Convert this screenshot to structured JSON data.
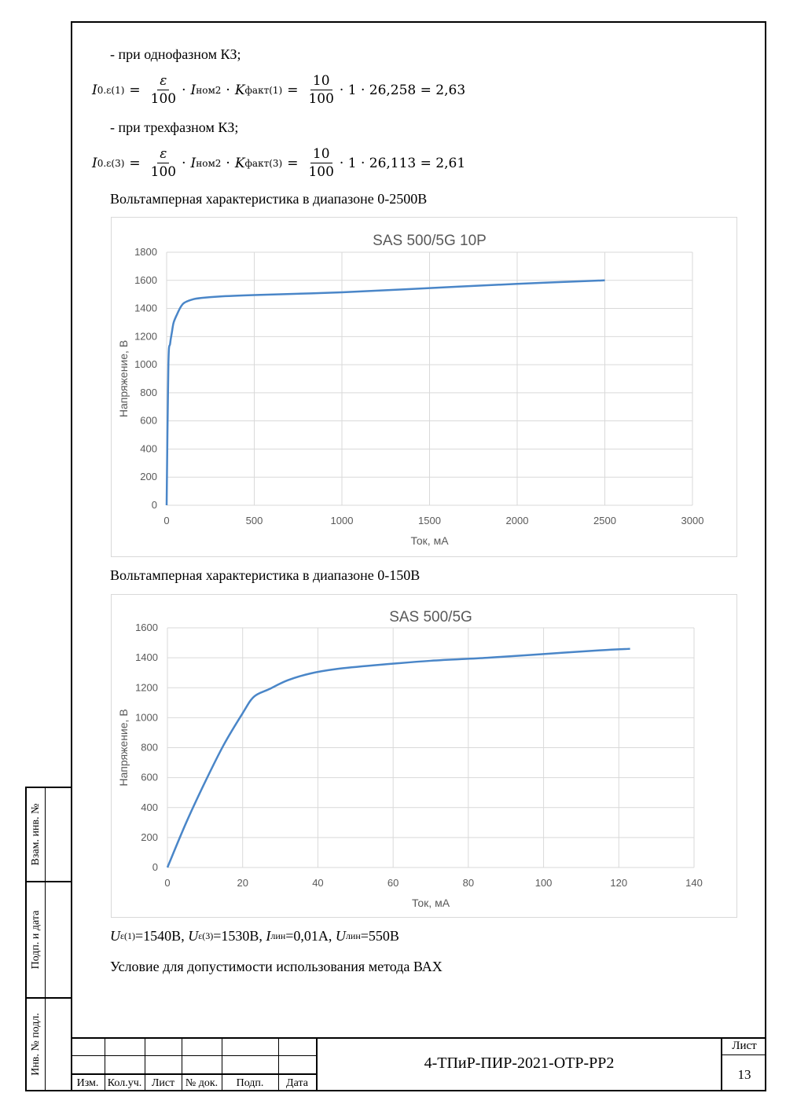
{
  "page": {
    "line1": "- при однофазном КЗ;",
    "line2": "- при трехфазном КЗ;",
    "caption1": "Вольтамперная характеристика в диапазоне 0-2500В",
    "caption2": "Вольтамперная характеристика в диапазоне 0-150В",
    "footer_condition": "Условие для допустимости использования метода ВАХ"
  },
  "formula1": {
    "lhs_sub": "0.ε(1)",
    "eps": "ε",
    "den": "100",
    "inom_sub": "ном2",
    "k_sub": "факт(1)",
    "num2": "10",
    "den2": "100",
    "tail": "· 1 · 26,258 = 2,63"
  },
  "formula2": {
    "lhs_sub": "0.ε(3)",
    "eps": "ε",
    "den": "100",
    "inom_sub": "ном2",
    "k_sub": "факт(3)",
    "num2": "10",
    "den2": "100",
    "tail": "· 1 · 26,113 = 2,61"
  },
  "params": {
    "u1_sub": "ε(1)",
    "u1_val": "=1540В,",
    "u3_sub": "ε(3)",
    "u3_val": "=1530В,",
    "ilin_sub": "лин",
    "ilin_val": "=0,01А,",
    "ulin_sub": "лин",
    "ulin_val": "=550В"
  },
  "chart_data": [
    {
      "type": "line",
      "title": "SAS 500/5G 10P",
      "xlabel": "Ток, мА",
      "ylabel": "Напряжение, В",
      "xlim": [
        0,
        3000
      ],
      "ylim": [
        0,
        1800
      ],
      "xticks": [
        0,
        500,
        1000,
        1500,
        2000,
        2500,
        3000
      ],
      "yticks": [
        0,
        200,
        400,
        600,
        800,
        1000,
        1200,
        1400,
        1600,
        1800
      ],
      "grid": true,
      "color": "#4a86c8",
      "x": [
        0,
        10,
        20,
        30,
        40,
        60,
        80,
        100,
        150,
        200,
        300,
        500,
        1000,
        1500,
        2000,
        2500
      ],
      "y": [
        0,
        1000,
        1150,
        1230,
        1300,
        1360,
        1410,
        1440,
        1465,
        1475,
        1485,
        1495,
        1515,
        1545,
        1575,
        1600
      ]
    },
    {
      "type": "line",
      "title": "SAS 500/5G",
      "xlabel": "Ток, мА",
      "ylabel": "Напряжение, В",
      "xlim": [
        0,
        140
      ],
      "ylim": [
        0,
        1600
      ],
      "xticks": [
        0,
        20,
        40,
        60,
        80,
        100,
        120,
        140
      ],
      "yticks": [
        0,
        200,
        400,
        600,
        800,
        1000,
        1200,
        1400,
        1600
      ],
      "grid": true,
      "color": "#4a86c8",
      "x": [
        0,
        5,
        10,
        15,
        20,
        23,
        27,
        32,
        38,
        45,
        55,
        70,
        85,
        100,
        115,
        123
      ],
      "y": [
        0,
        300,
        570,
        820,
        1030,
        1140,
        1190,
        1250,
        1295,
        1325,
        1350,
        1380,
        1400,
        1425,
        1450,
        1460
      ]
    }
  ],
  "side_stamp": {
    "row1": "Взам. инв. №",
    "row2": "Подп. и дата",
    "row3": "Инв. № подл."
  },
  "title_block": {
    "col_labels": [
      "Изм.",
      "Кол.уч.",
      "Лист",
      "№ док.",
      "Подп.",
      "Дата"
    ],
    "doc_code": "4-ТПиР-ПИР-2021-ОТР-РР2",
    "sheet_label": "Лист",
    "sheet_number": "13"
  }
}
